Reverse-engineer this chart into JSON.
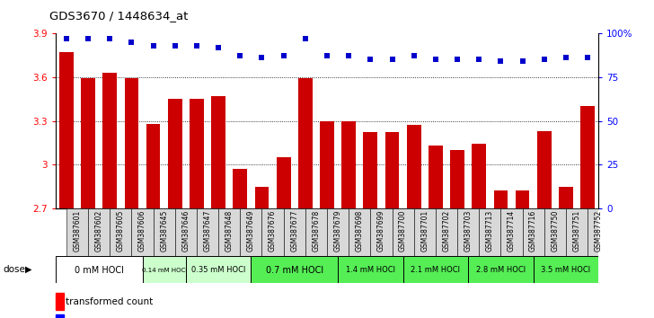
{
  "title": "GDS3670 / 1448634_at",
  "samples": [
    "GSM387601",
    "GSM387602",
    "GSM387605",
    "GSM387606",
    "GSM387645",
    "GSM387646",
    "GSM387647",
    "GSM387648",
    "GSM387649",
    "GSM387676",
    "GSM387677",
    "GSM387678",
    "GSM387679",
    "GSM387698",
    "GSM387699",
    "GSM387700",
    "GSM387701",
    "GSM387702",
    "GSM387703",
    "GSM387713",
    "GSM387714",
    "GSM387716",
    "GSM387750",
    "GSM387751",
    "GSM387752"
  ],
  "transformed_count": [
    3.77,
    3.59,
    3.63,
    3.59,
    3.28,
    3.45,
    3.45,
    3.47,
    2.97,
    2.85,
    3.05,
    3.59,
    3.3,
    3.3,
    3.22,
    3.22,
    3.27,
    3.13,
    3.1,
    3.14,
    2.82,
    2.82,
    3.23,
    2.85,
    3.4
  ],
  "percentile": [
    97,
    97,
    97,
    95,
    93,
    93,
    93,
    92,
    87,
    86,
    87,
    97,
    87,
    87,
    85,
    85,
    87,
    85,
    85,
    85,
    84,
    84,
    85,
    86,
    86
  ],
  "dose_groups": [
    {
      "label": "0 mM HOCl",
      "start": 0,
      "end": 4,
      "color": "#ffffff",
      "light": true
    },
    {
      "label": "0.14 mM HOCl",
      "start": 4,
      "end": 6,
      "color": "#ccffcc",
      "light": true
    },
    {
      "label": "0.35 mM HOCl",
      "start": 6,
      "end": 9,
      "color": "#ccffcc",
      "light": true
    },
    {
      "label": "0.7 mM HOCl",
      "start": 9,
      "end": 13,
      "color": "#55ee55",
      "light": false
    },
    {
      "label": "1.4 mM HOCl",
      "start": 13,
      "end": 16,
      "color": "#55ee55",
      "light": false
    },
    {
      "label": "2.1 mM HOCl",
      "start": 16,
      "end": 19,
      "color": "#55ee55",
      "light": false
    },
    {
      "label": "2.8 mM HOCl",
      "start": 19,
      "end": 22,
      "color": "#55ee55",
      "light": false
    },
    {
      "label": "3.5 mM HOCl",
      "start": 22,
      "end": 25,
      "color": "#55ee55",
      "light": false
    }
  ],
  "ylim_left": [
    2.7,
    3.9
  ],
  "ylim_right": [
    0,
    100
  ],
  "bar_color": "#cc0000",
  "dot_color": "#0000cc",
  "bg_color": "#ffffff",
  "right_yticks": [
    0,
    25,
    50,
    75,
    100
  ],
  "right_yticklabels": [
    "0",
    "25",
    "50",
    "75",
    "100%"
  ],
  "left_yticks": [
    2.7,
    3.0,
    3.3,
    3.6,
    3.9
  ],
  "left_yticklabels": [
    "2.7",
    "3",
    "3.3",
    "3.6",
    "3.9"
  ],
  "grid_ticks": [
    3.0,
    3.3,
    3.6
  ]
}
